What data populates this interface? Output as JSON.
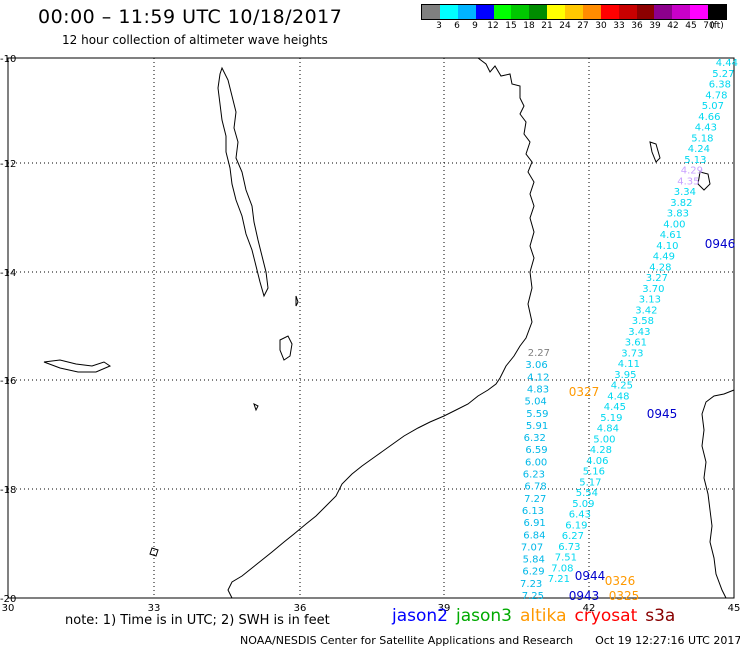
{
  "header": {
    "title": "00:00 – 11:59 UTC 10/18/2017",
    "subtitle": "12 hour collection of altimeter wave heights"
  },
  "legend": {
    "unit": "(ft)",
    "colors": [
      "#808080",
      "#00ffff",
      "#00b4ff",
      "#0000ff",
      "#00ff00",
      "#00c800",
      "#008c00",
      "#ffff00",
      "#ffc800",
      "#ff8c00",
      "#ff0000",
      "#c80000",
      "#8c0000",
      "#8c008c",
      "#c800c8",
      "#ff00ff",
      "#000000"
    ],
    "labels": [
      "3",
      "6",
      "9",
      "12",
      "15",
      "18",
      "21",
      "24",
      "27",
      "30",
      "33",
      "36",
      "39",
      "42",
      "45",
      "70"
    ]
  },
  "axes": {
    "lat_labels": [
      "-10",
      "-12",
      "-14",
      "-16",
      "-18",
      "-20"
    ],
    "lon_labels": [
      "30",
      "33",
      "36",
      "39",
      "42",
      "45"
    ]
  },
  "observations": {
    "track_a": [
      "4.44",
      "5.27",
      "6.38",
      "4.78",
      "5.07",
      "4.66",
      "4.43",
      "5.18",
      "4.24",
      "5.13",
      "4.29",
      "4.35",
      "3.34",
      "3.82",
      "3.83",
      "4.00",
      "4.61",
      "4.10",
      "4.49",
      "4.28",
      "3.27",
      "3.70",
      "3.13",
      "3.42",
      "3.58",
      "3.43",
      "3.61",
      "3.73",
      "4.11",
      "3.95",
      "4.25",
      "4.48",
      "4.45",
      "5.19",
      "4.84",
      "5.00",
      "4.28",
      "4.06",
      "5.16",
      "5.17",
      "5.54",
      "5.09",
      "6.43",
      "6.19",
      "6.27",
      "6.73",
      "7.51",
      "7.08",
      "7.21"
    ],
    "track_b": [
      "2.27",
      "3.06",
      "4.12",
      "4.83",
      "5.04",
      "5.59",
      "5.91",
      "6.32",
      "6.59",
      "6.00",
      "6.23",
      "6.78",
      "7.27",
      "6.13",
      "6.91",
      "6.84",
      "7.07",
      "5.84",
      "6.29",
      "7.23",
      "7.25"
    ],
    "times": [
      {
        "text": "0946",
        "sat": "jason2"
      },
      {
        "text": "0945",
        "sat": "jason2"
      },
      {
        "text": "0944",
        "sat": "jason2"
      },
      {
        "text": "0943",
        "sat": "jason2"
      },
      {
        "text": "0327",
        "sat": "altika"
      },
      {
        "text": "0326",
        "sat": "altika"
      },
      {
        "text": "0325",
        "sat": "altika"
      }
    ]
  },
  "footer": {
    "note": "note: 1) Time is in UTC; 2) SWH is in feet",
    "satellites": [
      {
        "name": "jason2",
        "color": "#0000ff"
      },
      {
        "name": "jason3",
        "color": "#00aa00"
      },
      {
        "name": "altika",
        "color": "#ff9900"
      },
      {
        "name": "cryosat",
        "color": "#ff0000"
      },
      {
        "name": "s3a",
        "color": "#880000"
      }
    ],
    "credit": "NOAA/NESDIS Center for Satellite Applications and Research",
    "timestamp": "Oct 19 12:27:16 UTC 2017"
  },
  "colors": {
    "track_a": "#00d8f0",
    "track_b": "#00b8e8",
    "track_gray": "#808080",
    "jason2": "#0000cc",
    "altika": "#ff9900"
  }
}
